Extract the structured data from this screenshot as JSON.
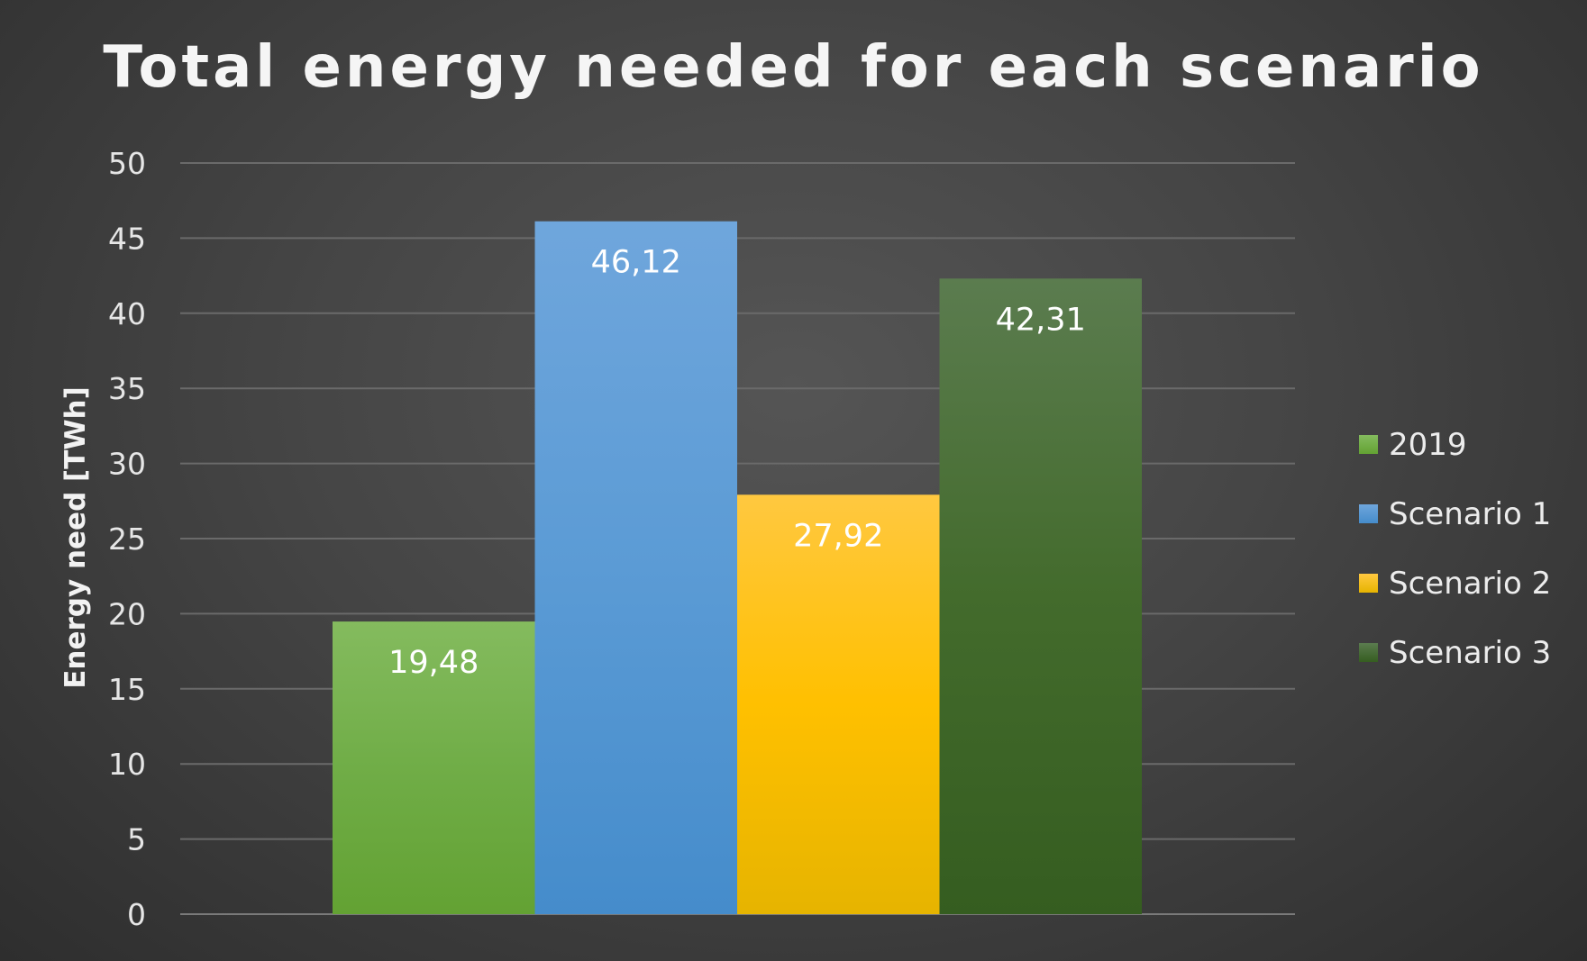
{
  "chart_data": {
    "type": "bar",
    "title": "Total energy needed for each scenario",
    "xlabel": "",
    "ylabel": "Energy need [TWh]",
    "ylim": [
      0,
      50
    ],
    "yticks": [
      0,
      5,
      10,
      15,
      20,
      25,
      30,
      35,
      40,
      45,
      50
    ],
    "grid": true,
    "legend_position": "right",
    "series": [
      {
        "name": "2019",
        "values": [
          19.48
        ],
        "data_label": "19,48",
        "color": "#70ad47",
        "color_top": "#84bb5e",
        "color_bottom": "#63a233"
      },
      {
        "name": "Scenario 1",
        "values": [
          46.12
        ],
        "data_label": "46,12",
        "color": "#5b9bd5",
        "color_top": "#6fa6dc",
        "color_bottom": "#458ccb"
      },
      {
        "name": "Scenario 2",
        "values": [
          27.92
        ],
        "data_label": "27,92",
        "color": "#ffc000",
        "color_top": "#ffc840",
        "color_bottom": "#e6b400"
      },
      {
        "name": "Scenario 3",
        "values": [
          42.31
        ],
        "data_label": "42,31",
        "color": "#436b2c",
        "color_top": "#5b7c4f",
        "color_bottom": "#355d20"
      }
    ]
  }
}
